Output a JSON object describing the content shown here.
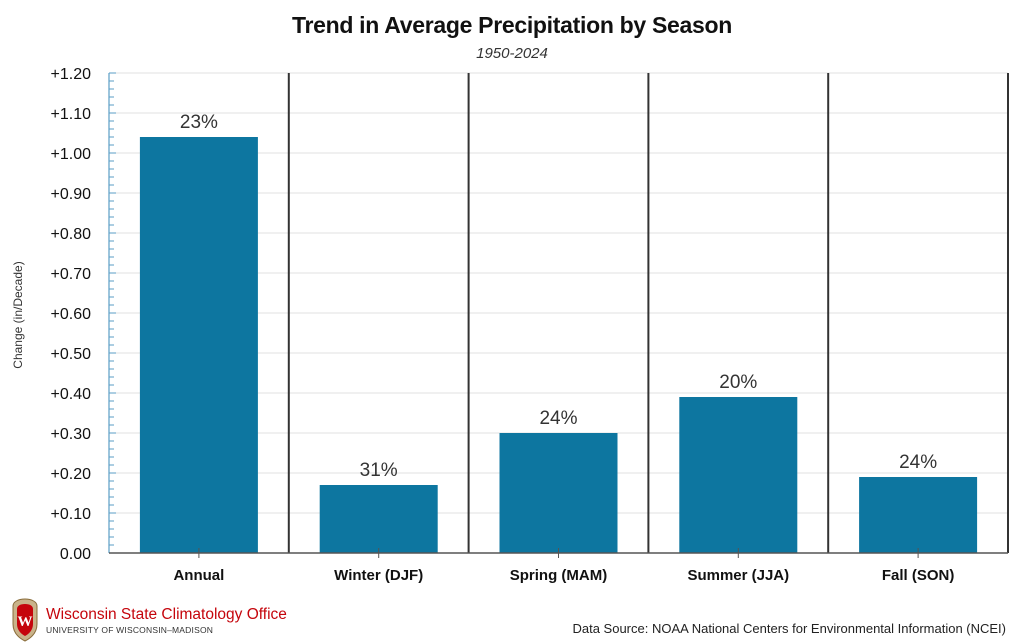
{
  "chart_data": {
    "type": "bar",
    "title": "Trend in Average Precipitation by Season",
    "subtitle": "1950-2024",
    "xlabel": "",
    "ylabel": "Change (in/Decade)",
    "categories": [
      "Annual",
      "Winter (DJF)",
      "Spring (MAM)",
      "Summer (JJA)",
      "Fall (SON)"
    ],
    "values": [
      1.04,
      0.17,
      0.3,
      0.39,
      0.19
    ],
    "data_labels": [
      "23%",
      "31%",
      "24%",
      "20%",
      "24%"
    ],
    "ylim": [
      0,
      1.2
    ],
    "yticks": [
      0,
      0.1,
      0.2,
      0.3,
      0.4,
      0.5,
      0.6,
      0.7,
      0.8,
      0.9,
      1.0,
      1.1,
      1.2
    ],
    "ytick_labels": [
      "0.00",
      "+0.10",
      "+0.20",
      "+0.30",
      "+0.40",
      "+0.50",
      "+0.60",
      "+0.70",
      "+0.80",
      "+0.90",
      "+1.00",
      "+1.10",
      "+1.20"
    ],
    "grid": true,
    "bar_color": "#0d76a0",
    "legend": "none"
  },
  "footer": {
    "org_name": "Wisconsin State Climatology Office",
    "org_sub": "UNIVERSITY OF WISCONSIN–MADISON",
    "source": "Data Source: NOAA National Centers for Environmental Information (NCEI)",
    "brand_color": "#c5050c"
  }
}
